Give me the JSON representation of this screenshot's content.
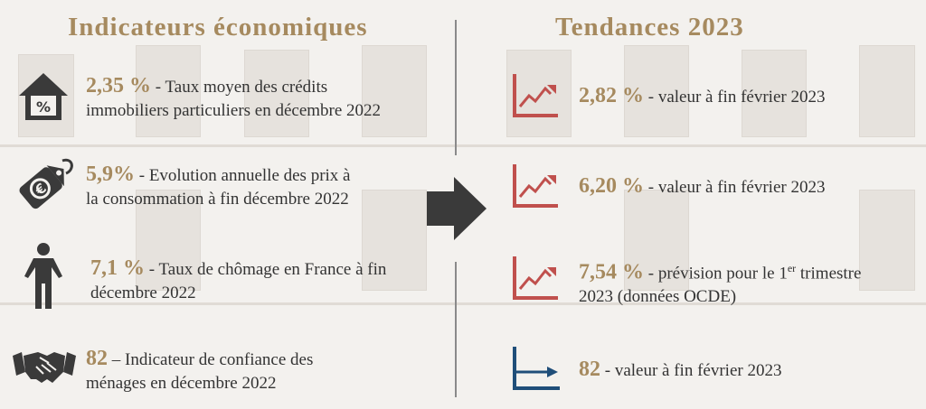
{
  "left": {
    "title": "Indicateurs économiques",
    "items": [
      {
        "value": "2,35 %",
        "text": " - Taux moyen des crédits",
        "text2": "immobiliers particuliers en décembre 2022",
        "icon": "house-percent-icon"
      },
      {
        "value": "5,9%",
        "text": " - Evolution annuelle des prix à",
        "text2": "la consommation à fin décembre 2022",
        "icon": "euro-tag-icon"
      },
      {
        "value": "7,1 %",
        "text": " - Taux de chômage en France à fin",
        "text2": "décembre 2022",
        "icon": "person-icon"
      },
      {
        "value": "82",
        "text": " – Indicateur de confiance des",
        "text2": "ménages en décembre 2022",
        "icon": "handshake-icon"
      }
    ]
  },
  "right": {
    "title": "Tendances 2023",
    "items": [
      {
        "value": "2,82 %",
        "text": " - valeur à fin février 2023",
        "icon": "trend-up-chart-icon"
      },
      {
        "value": "6,20 %",
        "text": " - valeur à fin février 2023",
        "icon": "trend-up-chart-icon"
      },
      {
        "value": "7,54 %",
        "text": " - prévision pour le 1",
        "sup": "er",
        "text_after": " trimestre",
        "text2": "2023 (données OCDE)",
        "icon": "trend-up-chart-icon"
      },
      {
        "value": "82",
        "text": " - valeur à fin février 2023",
        "icon": "trend-flat-chart-icon"
      }
    ]
  },
  "colors": {
    "accent": "#a68a5f",
    "trend_up": "#c0504d",
    "trend_flat": "#1f4e79",
    "icon_dark": "#3a3a3a"
  }
}
